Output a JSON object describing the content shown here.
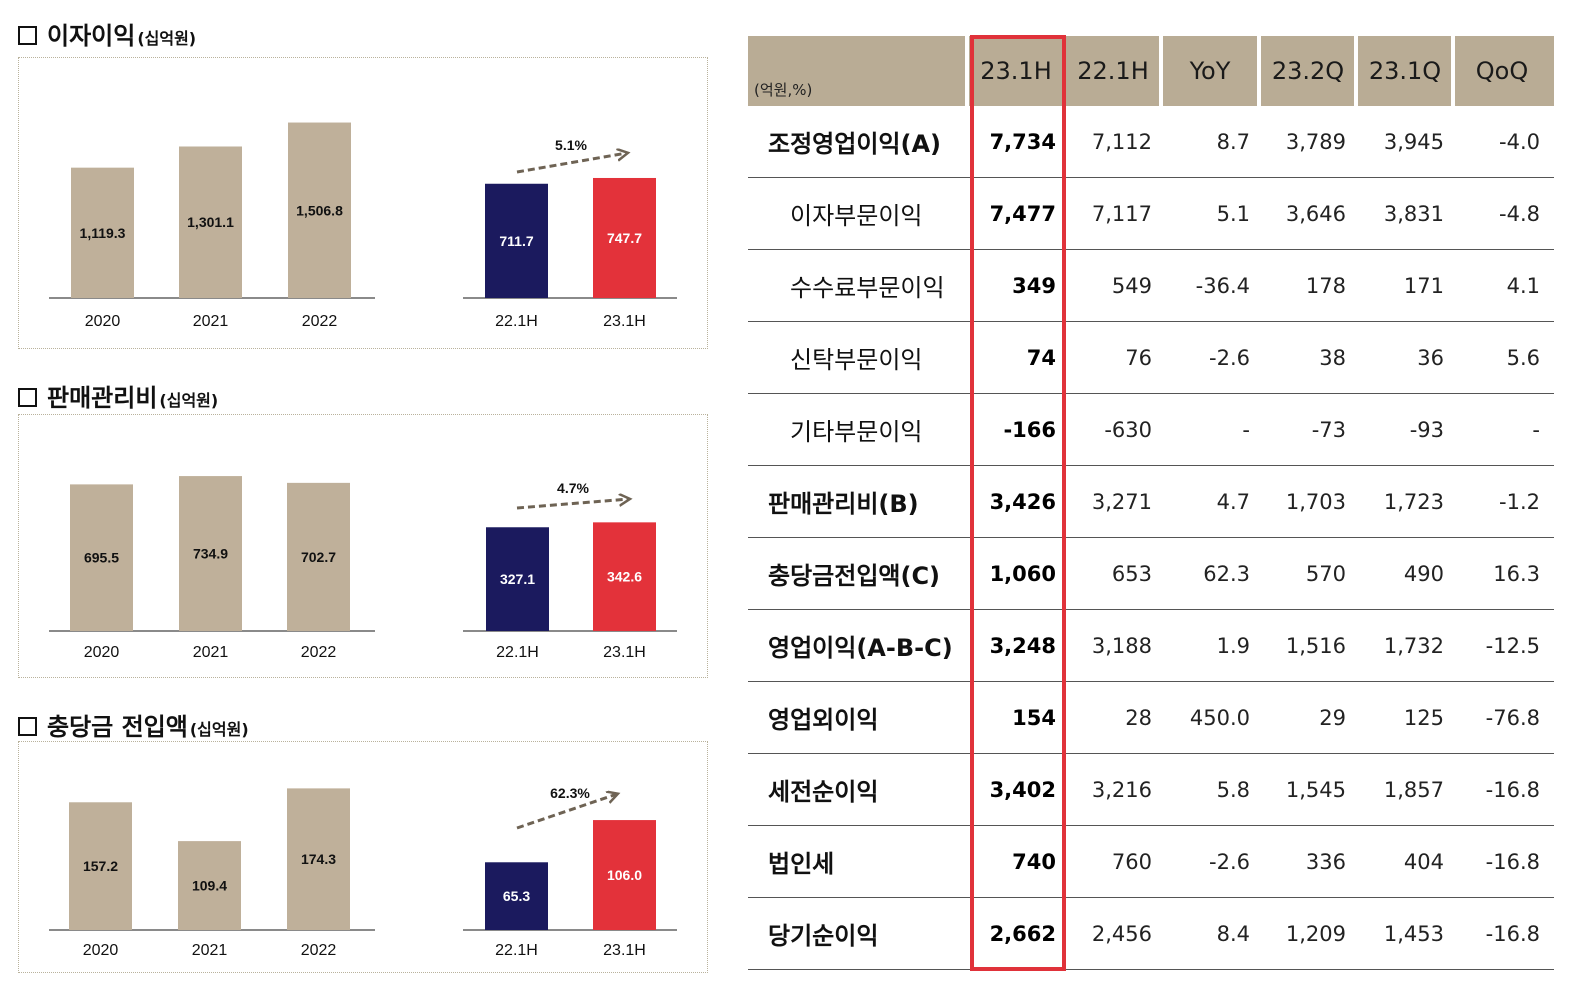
{
  "sections": [
    {
      "title": "이자이익",
      "unit": "(십억원)"
    },
    {
      "title": "판매관리비",
      "unit": "(십억원)"
    },
    {
      "title": "충당금 전입액",
      "unit": "(십억원)"
    }
  ],
  "chart_data": [
    {
      "type": "bar",
      "title": "이자이익(십억원)",
      "categories": [
        "2020",
        "2021",
        "2022"
      ],
      "values": [
        1119.3,
        1301.1,
        1506.8
      ],
      "labels": [
        "1,119.3",
        "1,301.1",
        "1,506.8"
      ],
      "compare": {
        "categories": [
          "22.1H",
          "23.1H"
        ],
        "values": [
          711.7,
          747.7
        ],
        "labels": [
          "711.7",
          "747.7"
        ],
        "growth": "5.1%"
      }
    },
    {
      "type": "bar",
      "title": "판매관리비(십억원)",
      "categories": [
        "2020",
        "2021",
        "2022"
      ],
      "values": [
        695.5,
        734.9,
        702.7
      ],
      "labels": [
        "695.5",
        "734.9",
        "702.7"
      ],
      "compare": {
        "categories": [
          "22.1H",
          "23.1H"
        ],
        "values": [
          327.1,
          342.6
        ],
        "labels": [
          "327.1",
          "342.6"
        ],
        "growth": "4.7%"
      }
    },
    {
      "type": "bar",
      "title": "충당금 전입액(십억원)",
      "categories": [
        "2020",
        "2021",
        "2022"
      ],
      "values": [
        157.2,
        109.4,
        174.3
      ],
      "labels": [
        "157.2",
        "109.4",
        "174.3"
      ],
      "compare": {
        "categories": [
          "22.1H",
          "23.1H"
        ],
        "values": [
          65.3,
          106.0
        ],
        "labels": [
          "65.3",
          "106.0"
        ],
        "growth": "62.3%"
      }
    }
  ],
  "colors": {
    "annual_bar": "#bfb09a",
    "prev_half_bar": "#1b1a5e",
    "curr_half_bar": "#e3323a",
    "header_bg": "#b9ac95",
    "highlight": "#e0323a",
    "arrow": "#6e6354"
  },
  "table": {
    "unit": "(억원,%)",
    "headers": [
      "23.1H",
      "22.1H",
      "YoY",
      "23.2Q",
      "23.1Q",
      "QoQ"
    ],
    "rows": [
      {
        "label": "조정영업이익(A)",
        "bold": true,
        "values": [
          "7,734",
          "7,112",
          "8.7",
          "3,789",
          "3,945",
          "-4.0"
        ]
      },
      {
        "label": "이자부문이익",
        "bold": false,
        "values": [
          "7,477",
          "7,117",
          "5.1",
          "3,646",
          "3,831",
          "-4.8"
        ]
      },
      {
        "label": "수수료부문이익",
        "bold": false,
        "values": [
          "349",
          "549",
          "-36.4",
          "178",
          "171",
          "4.1"
        ]
      },
      {
        "label": "신탁부문이익",
        "bold": false,
        "values": [
          "74",
          "76",
          "-2.6",
          "38",
          "36",
          "5.6"
        ]
      },
      {
        "label": "기타부문이익",
        "bold": false,
        "values": [
          "-166",
          "-630",
          "-",
          "-73",
          "-93",
          "-"
        ]
      },
      {
        "label": "판매관리비(B)",
        "bold": true,
        "values": [
          "3,426",
          "3,271",
          "4.7",
          "1,703",
          "1,723",
          "-1.2"
        ]
      },
      {
        "label": "충당금전입액(C)",
        "bold": true,
        "values": [
          "1,060",
          "653",
          "62.3",
          "570",
          "490",
          "16.3"
        ]
      },
      {
        "label": "영업이익(A-B-C)",
        "bold": true,
        "values": [
          "3,248",
          "3,188",
          "1.9",
          "1,516",
          "1,732",
          "-12.5"
        ]
      },
      {
        "label": "영업외이익",
        "bold": true,
        "values": [
          "154",
          "28",
          "450.0",
          "29",
          "125",
          "-76.8"
        ]
      },
      {
        "label": "세전순이익",
        "bold": true,
        "values": [
          "3,402",
          "3,216",
          "5.8",
          "1,545",
          "1,857",
          "-16.8"
        ]
      },
      {
        "label": "법인세",
        "bold": true,
        "values": [
          "740",
          "760",
          "-2.6",
          "336",
          "404",
          "-16.8"
        ]
      },
      {
        "label": "당기순이익",
        "bold": true,
        "values": [
          "2,662",
          "2,456",
          "8.4",
          "1,209",
          "1,453",
          "-16.8"
        ]
      }
    ]
  }
}
